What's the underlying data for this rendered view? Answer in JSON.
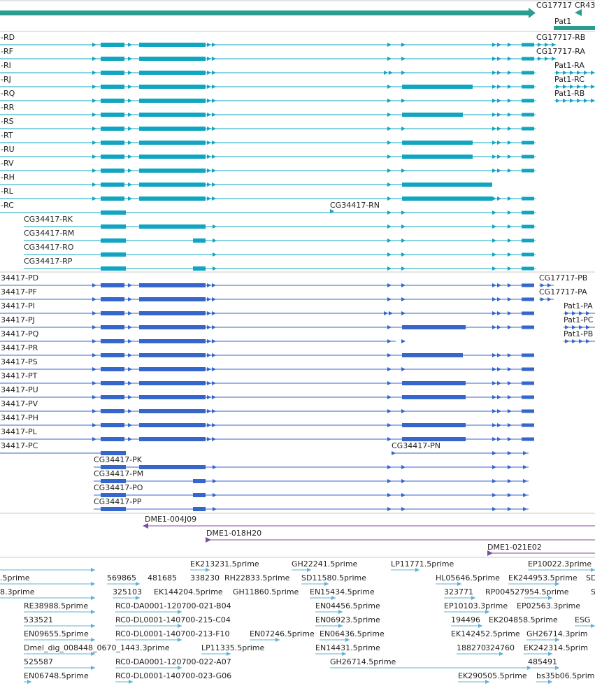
{
  "colors": {
    "gene": "#2a9d8f",
    "rna_transcript": "#12a5c2",
    "protein": "#3566cc",
    "clone": "#7b4fa0",
    "est": "#5fb3d6",
    "separator": "#c8c8c8",
    "label": "#222222"
  },
  "gene_track": {
    "labels": [
      "CG17717",
      "CR43",
      "Pat1"
    ]
  },
  "transcripts": {
    "left_labels": [
      "-RD",
      "-RF",
      "-RI",
      "-RJ",
      "-RQ",
      "-RR",
      "-RS",
      "-RT",
      "-RU",
      "-RV",
      "-RH",
      "-RL",
      "-RC"
    ],
    "right_labels": [
      "CG17717-RB",
      "CG17717-RA",
      "Pat1-RA",
      "Pat1-RC",
      "Pat1-RB"
    ],
    "inline_labels": [
      "CG34417-RN"
    ],
    "lower_labels": [
      "CG34417-RK",
      "CG34417-RM",
      "CG34417-RO",
      "CG34417-RP"
    ]
  },
  "proteins": {
    "left_labels": [
      "34417-PD",
      "34417-PF",
      "34417-PI",
      "34417-PJ",
      "34417-PQ",
      "34417-PR",
      "34417-PS",
      "34417-PT",
      "34417-PU",
      "34417-PV",
      "34417-PH",
      "34417-PL",
      "34417-PC"
    ],
    "right_labels": [
      "CG17717-PB",
      "CG17717-PA",
      "Pat1-PA",
      "Pat1-PC",
      "Pat1-PB"
    ],
    "inline_labels": [
      "CG34417-PN"
    ],
    "lower_labels": [
      "CG34417-PK",
      "CG34417-PM",
      "CG34417-PO",
      "CG34417-PP"
    ]
  },
  "clones": {
    "labels": [
      "DME1-004J09",
      "DME1-018H20",
      "DME1-021E02"
    ]
  },
  "ests": {
    "labels": [
      "EK213231.5prime",
      "GH22241.5prime",
      "LP11771.5prime",
      "EP10022.3prime",
      ".5prime",
      "569865",
      "481685",
      "338230",
      "RH22833.5prime",
      "SD11580.5prime",
      "HL05646.5prime",
      "EK244953.5prime",
      "SD",
      "8.3prime",
      "325103",
      "EK144204.5prime",
      "GH11860.5prime",
      "EN15434.5prime",
      "323771",
      "RP004527",
      "954.5prime",
      "S",
      "RE38988.5prime",
      "RC0-DA0001-120700-021-B04",
      "EN04456.5prime",
      "EP10103.3prime",
      "EP02563.3prime",
      "533521",
      "RC0-DL0001-140700-215-C04",
      "EN06923.5prime",
      "194496",
      "EK204858.5prime",
      "ESG",
      "EN09655.5prime",
      "RC0-DL0001-140700-213-F10",
      "EN07246.5prime",
      "EN06436.5prime",
      "EK142452.5prime",
      "GH26714.3prim",
      "Dmel_dig_008448_0670_1443.3prime",
      "LP11335.5prime",
      "EN14431.5prime",
      "188270",
      "324760",
      "EK242314.5prim",
      "525587",
      "RC0-DA0001-120700-022-A07",
      "GH26714.5prime",
      "485491",
      "EN06748.5prime",
      "RC0-DL0001-140700-023-G06",
      "EK290505.5prime",
      "bs35b06.5prim"
    ]
  }
}
